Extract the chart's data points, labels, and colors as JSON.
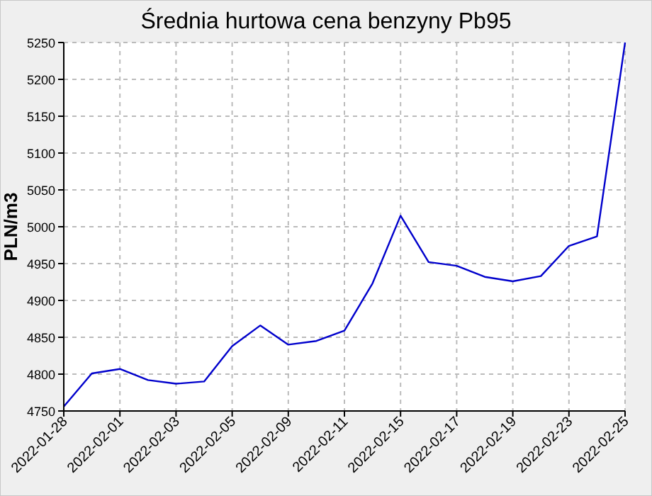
{
  "chart_data": {
    "type": "line",
    "title": "Średnia hurtowa cena benzyny Pb95",
    "ylabel": "PLN/m3",
    "categories": [
      "2022-01-28",
      null,
      "2022-02-01",
      null,
      "2022-02-03",
      null,
      "2022-02-05",
      null,
      "2022-02-09",
      null,
      "2022-02-11",
      null,
      "2022-02-15",
      null,
      "2022-02-17",
      null,
      "2022-02-19",
      null,
      "2022-02-23",
      null,
      "2022-02-25"
    ],
    "series": [
      {
        "color": "#0000cc",
        "values": [
          4756,
          4801,
          4807,
          4792,
          4787,
          4790,
          4838,
          4866,
          4840,
          4845,
          4859,
          4923,
          5015,
          4952,
          4947,
          4932,
          4926,
          4933,
          4974,
          4987,
          5250
        ]
      }
    ],
    "ylim": [
      4750,
      5250
    ],
    "yticks": [
      4750,
      4800,
      4850,
      4900,
      4950,
      5000,
      5050,
      5100,
      5150,
      5200,
      5250
    ],
    "grid": true,
    "marker": "none",
    "line_style": "solid"
  }
}
